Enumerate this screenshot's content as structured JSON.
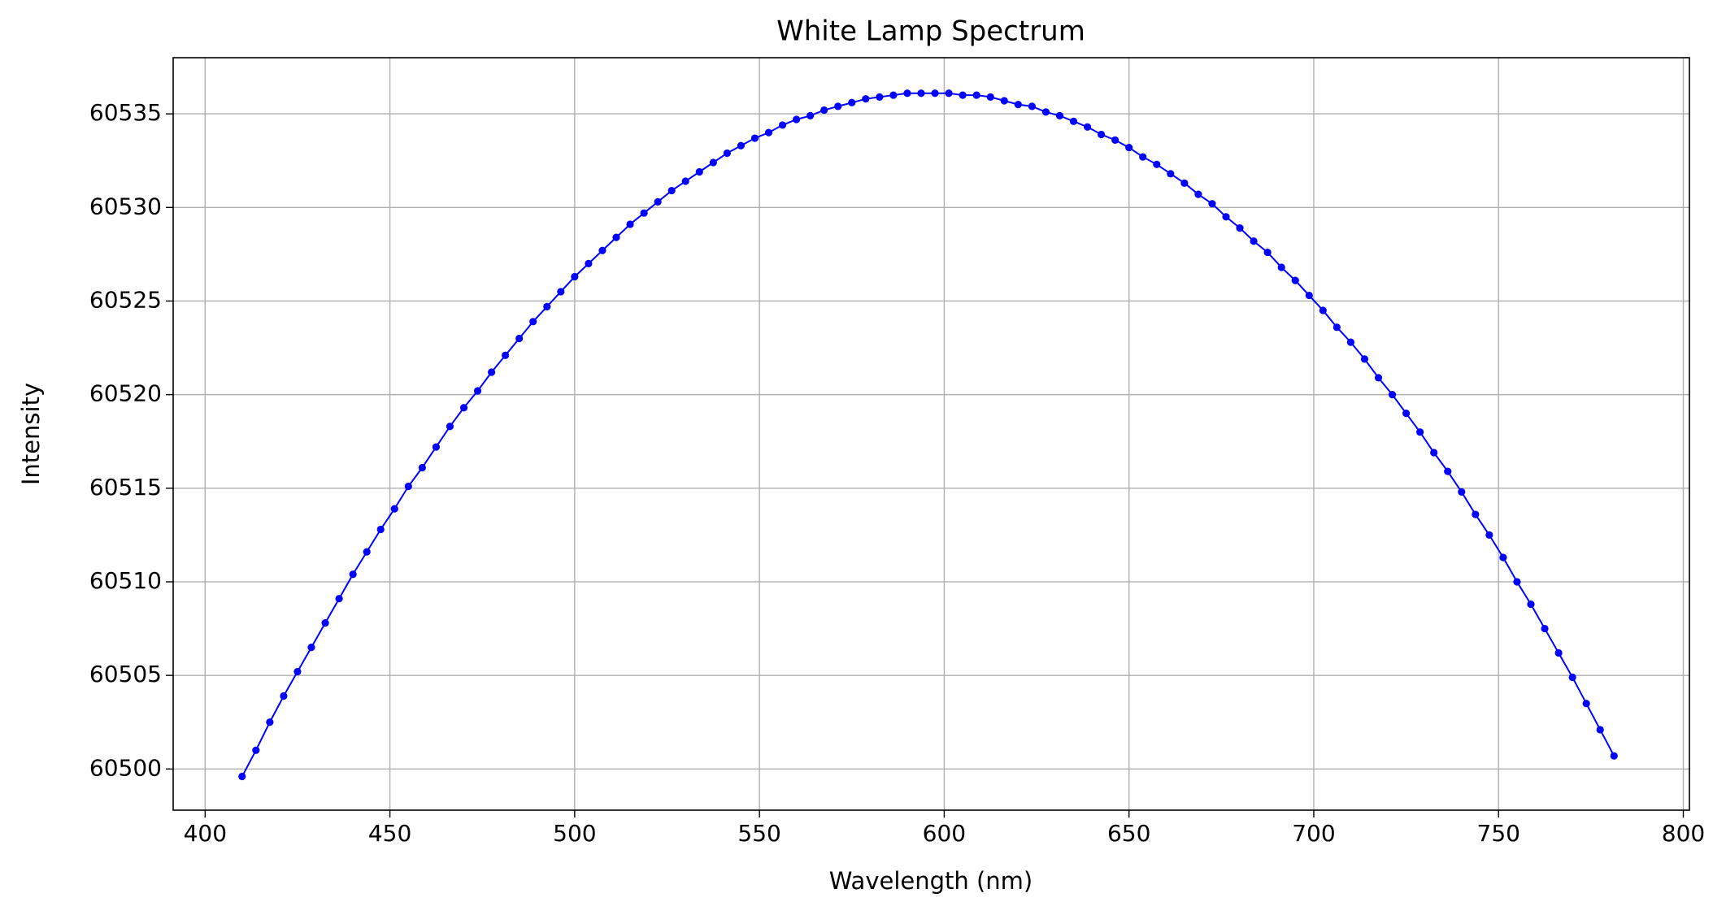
{
  "chart_data": {
    "type": "line",
    "title": "White Lamp Spectrum",
    "x_label": "Wavelength (nm)",
    "y_label": "Intensity",
    "grid": true,
    "marker": "circle",
    "xlim": [
      391.35,
      801.65
    ],
    "ylim": [
      60497.8,
      60538.0
    ],
    "xticks": [
      400,
      450,
      500,
      550,
      600,
      650,
      700,
      750,
      800
    ],
    "yticks": [
      60500,
      60505,
      60510,
      60515,
      60520,
      60525,
      60530,
      60535
    ],
    "x": [
      410,
      413.75,
      417.5,
      421.25,
      425,
      428.75,
      432.5,
      436.25,
      440,
      443.75,
      447.5,
      451.25,
      455,
      458.75,
      462.5,
      466.25,
      470,
      473.75,
      477.5,
      481.25,
      485,
      488.75,
      492.5,
      496.25,
      500,
      503.75,
      507.5,
      511.25,
      515,
      518.75,
      522.5,
      526.25,
      530,
      533.75,
      537.5,
      541.25,
      545,
      548.75,
      552.5,
      556.25,
      560,
      563.75,
      567.5,
      571.25,
      575,
      578.75,
      582.5,
      586.25,
      590,
      593.75,
      597.5,
      601.25,
      605,
      608.75,
      612.5,
      616.25,
      620,
      623.75,
      627.5,
      631.25,
      635,
      638.75,
      642.5,
      646.25,
      650,
      653.75,
      657.5,
      661.25,
      665,
      668.75,
      672.5,
      676.25,
      680,
      683.75,
      687.5,
      691.25,
      695,
      698.75,
      702.5,
      706.25,
      710,
      713.75,
      717.5,
      721.25,
      725,
      728.75,
      732.5,
      736.25,
      740,
      743.75,
      747.5,
      751.25,
      755,
      758.75,
      762.5,
      766.25,
      770,
      773.75,
      777.5,
      781.25
    ],
    "series": [
      {
        "name": "White Lamp",
        "color": "#0000ff",
        "values": [
          60499.6,
          60501.0,
          60502.5,
          60503.9,
          60505.2,
          60506.5,
          60507.8,
          60509.1,
          60510.4,
          60511.6,
          60512.8,
          60513.9,
          60515.1,
          60516.1,
          60517.2,
          60518.3,
          60519.3,
          60520.2,
          60521.2,
          60522.1,
          60523.0,
          60523.9,
          60524.7,
          60525.5,
          60526.3,
          60527.0,
          60527.7,
          60528.4,
          60529.1,
          60529.7,
          60530.3,
          60530.9,
          60531.4,
          60531.9,
          60532.4,
          60532.9,
          60533.3,
          60533.7,
          60534.0,
          60534.4,
          60534.7,
          60534.9,
          60535.2,
          60535.4,
          60535.6,
          60535.8,
          60535.9,
          60536.0,
          60536.1,
          60536.1,
          60536.1,
          60536.1,
          60536.0,
          60536.0,
          60535.9,
          60535.7,
          60535.5,
          60535.4,
          60535.1,
          60534.9,
          60534.6,
          60534.3,
          60533.9,
          60533.6,
          60533.2,
          60532.7,
          60532.3,
          60531.8,
          60531.3,
          60530.7,
          60530.2,
          60529.5,
          60528.9,
          60528.2,
          60527.6,
          60526.8,
          60526.1,
          60525.3,
          60524.5,
          60523.6,
          60522.8,
          60521.9,
          60520.9,
          60520.0,
          60519.0,
          60518.0,
          60516.9,
          60515.9,
          60514.8,
          60513.6,
          60512.5,
          60511.3,
          60510.0,
          60508.8,
          60507.5,
          60506.2,
          60504.9,
          60503.5,
          60502.1,
          60500.7
        ]
      }
    ]
  }
}
